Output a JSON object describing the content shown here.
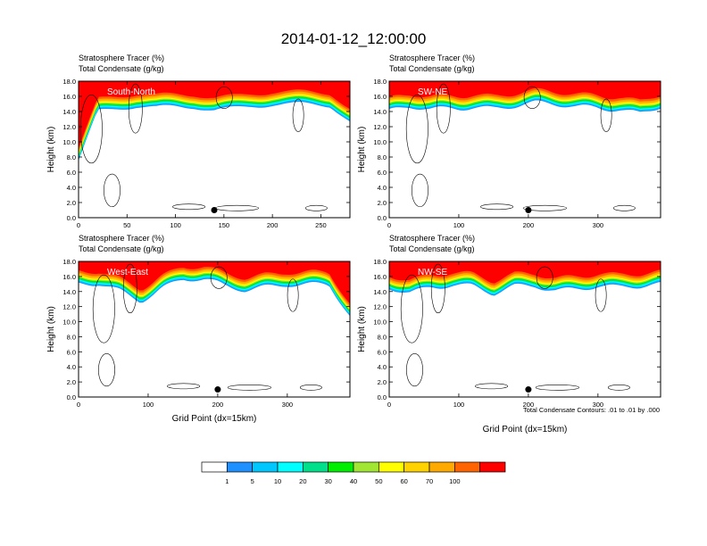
{
  "title": "2014-01-12_12:00:00",
  "chart_data": [
    {
      "type": "heatmap",
      "panel_title": "South-North",
      "label_line1": "Stratosphere Tracer   (%)",
      "label_line2": "Total Condensate   (g/kg)",
      "ylabel": "Height (km)",
      "xlabel": "",
      "xlim": [
        0,
        280
      ],
      "ylim": [
        0,
        18
      ],
      "xticks": [
        "0",
        "50",
        "100",
        "150",
        "200",
        "250"
      ],
      "xtick_values": [
        0,
        50,
        100,
        150,
        200,
        250
      ],
      "yticks": [
        "0.0",
        "2.0",
        "4.0",
        "6.0",
        "8.0",
        "10.0",
        "12.0",
        "14.0",
        "16.0",
        "18.0"
      ],
      "marker_x": 140,
      "marker_y": 1.0,
      "tracer_profile": {
        "x": [
          0,
          20,
          40,
          60,
          80,
          100,
          120,
          140,
          160,
          180,
          200,
          220,
          240,
          260,
          280
        ],
        "base_km": [
          7.5,
          13.8,
          14.2,
          14.5,
          14.3,
          14.6,
          14.8,
          14.4,
          14.6,
          14.9,
          15.0,
          14.8,
          14.7,
          14.6,
          12.5
        ]
      }
    },
    {
      "type": "heatmap",
      "panel_title": "SW-NE",
      "label_line1": "Stratosphere Tracer   (%)",
      "label_line2": "Total Condensate   (g/kg)",
      "ylabel": "Height (km)",
      "xlabel": "",
      "xlim": [
        0,
        390
      ],
      "ylim": [
        0,
        18
      ],
      "xticks": [
        "0",
        "100",
        "200",
        "300"
      ],
      "xtick_values": [
        0,
        100,
        200,
        300
      ],
      "yticks": [
        "0.0",
        "2.0",
        "4.0",
        "6.0",
        "8.0",
        "10.0",
        "12.0",
        "14.0",
        "16.0",
        "18.0"
      ],
      "marker_x": 200,
      "marker_y": 1.0,
      "tracer_profile": {
        "x": [
          0,
          30,
          60,
          90,
          120,
          150,
          180,
          210,
          240,
          270,
          300,
          330,
          360,
          390
        ],
        "base_km": [
          13.8,
          14.5,
          14.2,
          14.6,
          14.8,
          14.5,
          14.7,
          14.9,
          14.8,
          14.6,
          14.7,
          14.5,
          13.8,
          14.6
        ]
      }
    },
    {
      "type": "heatmap",
      "panel_title": "West-East",
      "label_line1": "Stratosphere Tracer   (%)",
      "label_line2": "Total Condensate   (g/kg)",
      "ylabel": "Height (km)",
      "xlabel": "Grid Point (dx=15km)",
      "xlim": [
        0,
        390
      ],
      "ylim": [
        0,
        18
      ],
      "xticks": [
        "0",
        "100",
        "200",
        "300"
      ],
      "xtick_values": [
        0,
        100,
        200,
        300
      ],
      "yticks": [
        "0.0",
        "2.0",
        "4.0",
        "6.0",
        "8.0",
        "10.0",
        "12.0",
        "14.0",
        "16.0",
        "18.0"
      ],
      "marker_x": 200,
      "marker_y": 1.0,
      "tracer_profile": {
        "x": [
          0,
          30,
          60,
          90,
          120,
          150,
          180,
          210,
          240,
          270,
          300,
          330,
          360,
          390
        ],
        "base_km": [
          14.8,
          15.0,
          14.2,
          13.0,
          14.5,
          15.6,
          15.4,
          14.6,
          14.2,
          14.8,
          15.2,
          15.0,
          14.8,
          10.5
        ]
      }
    },
    {
      "type": "heatmap",
      "panel_title": "NW-SE",
      "label_line1": "Stratosphere Tracer   (%)",
      "label_line2": "Total Condensate   (g/kg)",
      "ylabel": "Height (km)",
      "xlabel": "Grid Point (dx=15km)",
      "xlim": [
        0,
        390
      ],
      "ylim": [
        0,
        18
      ],
      "xticks": [
        "0",
        "100",
        "200",
        "300"
      ],
      "xtick_values": [
        0,
        100,
        200,
        300
      ],
      "yticks": [
        "0.0",
        "2.0",
        "4.0",
        "6.0",
        "8.0",
        "10.0",
        "12.0",
        "14.0",
        "16.0",
        "18.0"
      ],
      "marker_x": 200,
      "marker_y": 1.0,
      "tracer_profile": {
        "x": [
          0,
          30,
          60,
          90,
          120,
          150,
          180,
          210,
          240,
          270,
          300,
          330,
          360,
          390
        ],
        "base_km": [
          14.5,
          14.0,
          14.8,
          15.0,
          14.6,
          13.5,
          14.5,
          14.8,
          14.3,
          14.6,
          14.8,
          14.4,
          14.5,
          14.8
        ]
      }
    }
  ],
  "contour_note": "Total Condensate Contours: .01 to .01 by .000",
  "colorbar": {
    "labels": [
      "1",
      "5",
      "10",
      "20",
      "30",
      "40",
      "50",
      "60",
      "70",
      "100"
    ],
    "colors": [
      "#ffffff",
      "#1e90ff",
      "#00c8ff",
      "#00ffff",
      "#00e08a",
      "#00ee00",
      "#a0e632",
      "#ffff00",
      "#ffd200",
      "#ffaa00",
      "#ff6400",
      "#ff0000"
    ]
  }
}
